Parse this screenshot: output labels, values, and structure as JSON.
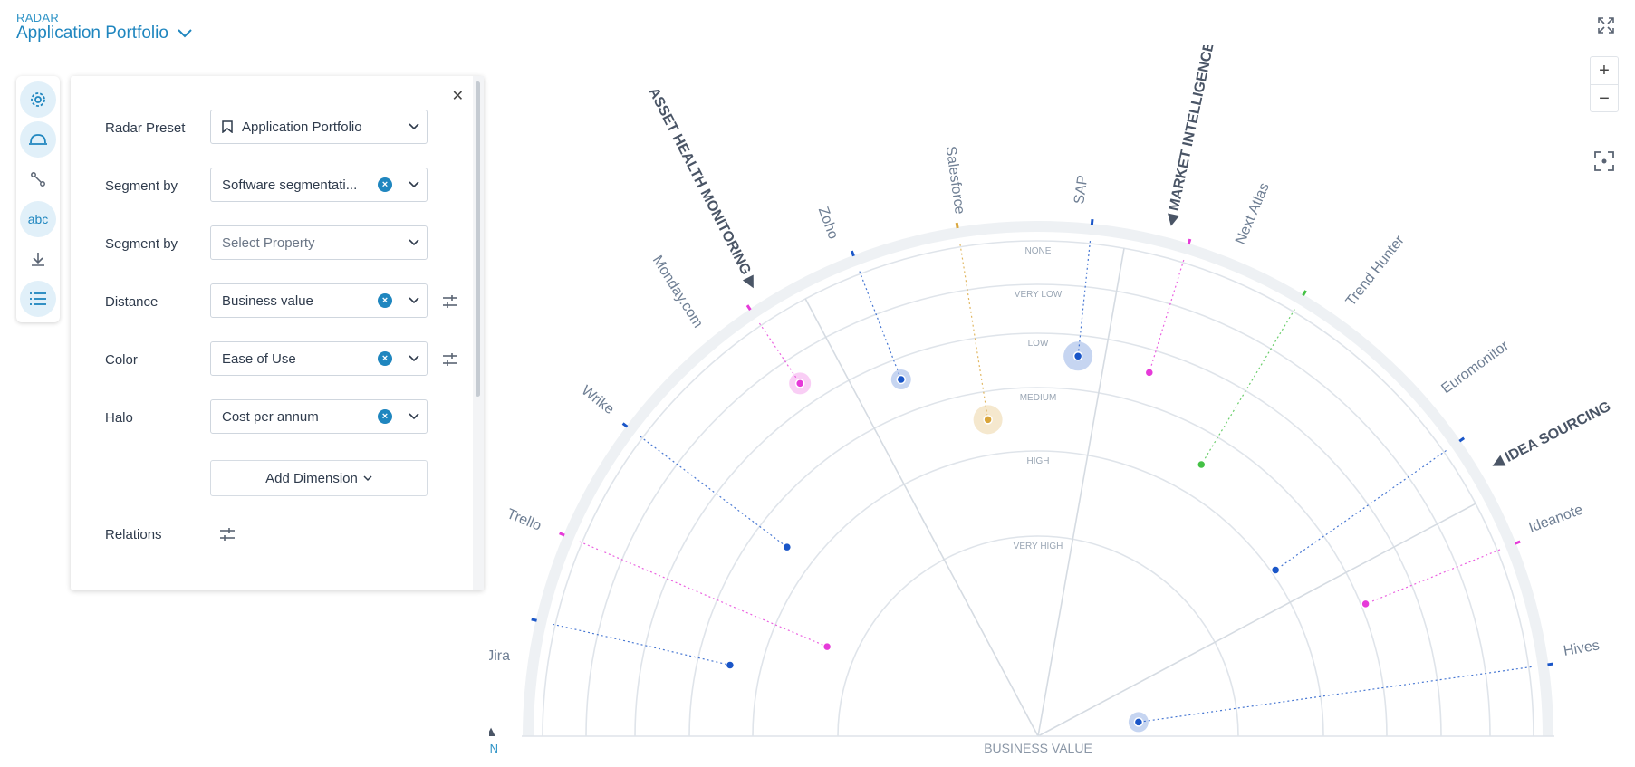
{
  "header": {
    "crumb": "RADAR",
    "title": "Application Portfolio"
  },
  "toolbar": {
    "icons": [
      "gear-icon",
      "helmet-icon",
      "relations-icon",
      "text-icon",
      "download-icon",
      "list-icon"
    ]
  },
  "panel": {
    "rows": [
      {
        "label": "Radar Preset",
        "value": "Application Portfolio"
      },
      {
        "label": "Segment by",
        "value": "Software segmentati..."
      },
      {
        "label": "Segment by",
        "placeholder": "Select Property"
      },
      {
        "label": "Distance",
        "value": "Business value"
      },
      {
        "label": "Color",
        "value": "Ease of Use"
      },
      {
        "label": "Halo",
        "value": "Cost per annum"
      }
    ],
    "add_dimension": "Add Dimension",
    "relations_label": "Relations"
  },
  "radar": {
    "segments": [
      "PROJECT EXECUTION",
      "ASSET HEALTH MONITORING",
      "MARKET INTELLIGENCE",
      "IDEA SOURCING"
    ],
    "segmentation_label": "SOFTWARE SEGMENTATION",
    "axis_label": "BUSINESS VALUE",
    "rings": [
      "NONE",
      "VERY LOW",
      "LOW",
      "MEDIUM",
      "HIGH",
      "VERY HIGH"
    ],
    "items": [
      {
        "name": "Jira",
        "color": "#1a56c8"
      },
      {
        "name": "Trello",
        "color": "#e63ad9"
      },
      {
        "name": "Wrike",
        "color": "#1a56c8"
      },
      {
        "name": "Monday.com",
        "color": "#44c145"
      },
      {
        "name": "Zoho",
        "color": "#e63ad9"
      },
      {
        "name": "Salesforce",
        "color": "#1a56c8"
      },
      {
        "name": "SAP",
        "color": "#d9a53a"
      },
      {
        "name": "Next Atlas",
        "color": "#1a56c8"
      },
      {
        "name": "Trend Hunter",
        "color": "#e63ad9"
      },
      {
        "name": "Euromonitor",
        "color": "#1a56c8"
      },
      {
        "name": "Ideanote",
        "color": "#e63ad9"
      },
      {
        "name": "Hives",
        "color": "#1a56c8"
      }
    ]
  }
}
